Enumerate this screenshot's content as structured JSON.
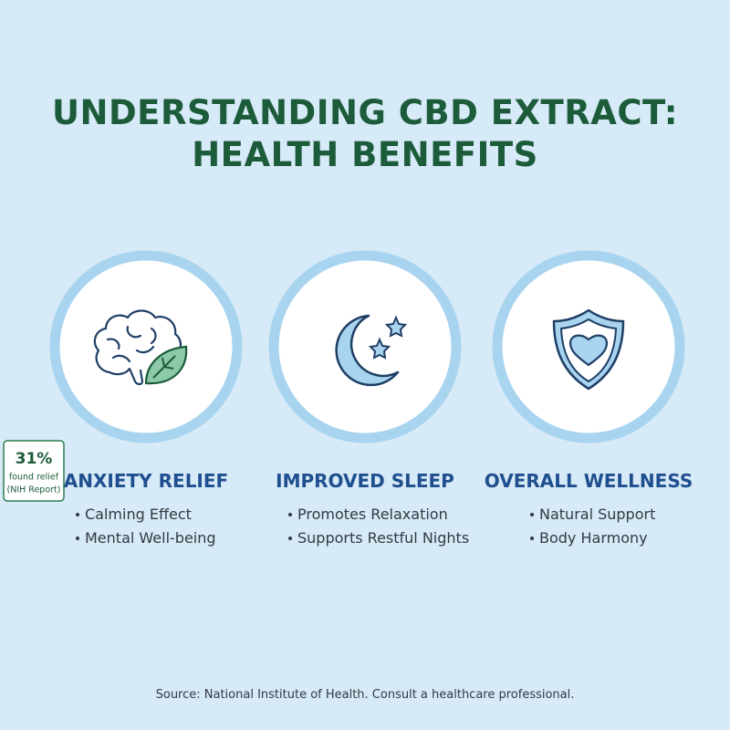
{
  "header": {
    "title_lines": [
      "UNDERSTANDING CBD EXTRACT:",
      "HEALTH BENEFITS"
    ]
  },
  "benefits": [
    {
      "title": "ANXIETY RELIEF",
      "points": [
        "Calming Effect",
        "Mental Well-being"
      ]
    },
    {
      "title": "IMPROVED SLEEP",
      "points": [
        "Promotes Relaxation",
        "Supports Restful Nights"
      ]
    },
    {
      "title": "OVERALL WELLNESS",
      "points": [
        "Natural Support",
        "Body Harmony"
      ]
    }
  ],
  "badge": {
    "stat": "31%",
    "lines": [
      "found relief",
      "(NIH Report)"
    ]
  },
  "footer": {
    "source": "Source: National Institute of Health. Consult a healthcare professional."
  }
}
